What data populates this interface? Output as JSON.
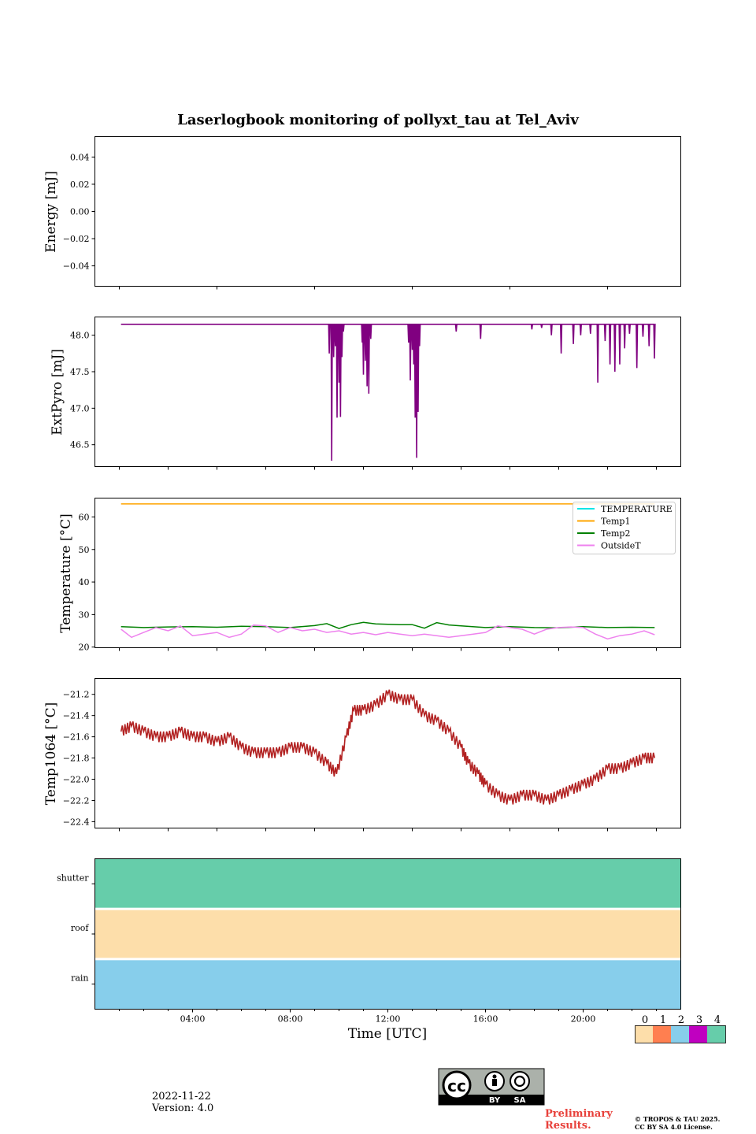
{
  "title": "Laserlogbook monitoring of pollyxt_tau at Tel_Aviv",
  "footer": {
    "date": "2022-11-22",
    "version": "Version: 4.0",
    "preliminary_line1": "Preliminary",
    "preliminary_line2": "Results.",
    "copyright_line1": "© TROPOS & TAU 2025.",
    "copyright_line2": "CC BY SA 4.0 License.",
    "license_badge": {
      "cc": "cc",
      "by": "BY",
      "sa": "SA"
    }
  },
  "chart_data": [
    {
      "type": "line",
      "id": "energy",
      "ylabel": "Energy [mJ]",
      "ylim": [
        -0.055,
        0.055
      ],
      "yticks": [
        "0.04",
        "0.02",
        "0.00",
        "−0.02",
        "−0.04"
      ],
      "ytick_values": [
        0.04,
        0.02,
        0.0,
        -0.02,
        -0.04
      ],
      "xlim": [
        0,
        24
      ],
      "series": []
    },
    {
      "type": "line",
      "id": "extpyro",
      "ylabel": "ExtPyro [mJ]",
      "ylim": [
        46.2,
        48.25
      ],
      "yticks": [
        "48.0",
        "47.5",
        "47.0",
        "46.5"
      ],
      "ytick_values": [
        48.0,
        47.5,
        47.0,
        46.5
      ],
      "xlim": [
        0,
        24
      ],
      "color": "#800080",
      "baseline": 48.15,
      "x_range": [
        1.07,
        22.93
      ],
      "dips": [
        [
          9.6,
          47.75
        ],
        [
          9.7,
          46.28
        ],
        [
          9.78,
          47.7
        ],
        [
          9.85,
          47.85
        ],
        [
          9.92,
          46.87
        ],
        [
          10.0,
          47.35
        ],
        [
          10.06,
          46.88
        ],
        [
          10.12,
          47.7
        ],
        [
          10.18,
          48.05
        ],
        [
          10.95,
          47.9
        ],
        [
          11.0,
          47.46
        ],
        [
          11.08,
          47.65
        ],
        [
          11.15,
          47.3
        ],
        [
          11.22,
          47.2
        ],
        [
          11.3,
          47.95
        ],
        [
          12.85,
          47.9
        ],
        [
          12.92,
          47.38
        ],
        [
          13.0,
          47.8
        ],
        [
          13.06,
          47.6
        ],
        [
          13.12,
          46.87
        ],
        [
          13.18,
          46.32
        ],
        [
          13.24,
          46.95
        ],
        [
          13.3,
          47.85
        ],
        [
          14.8,
          48.05
        ],
        [
          15.8,
          47.95
        ],
        [
          17.9,
          48.08
        ],
        [
          18.3,
          48.1
        ],
        [
          18.7,
          48.0
        ],
        [
          19.1,
          47.75
        ],
        [
          19.6,
          47.88
        ],
        [
          19.9,
          48.0
        ],
        [
          20.3,
          48.02
        ],
        [
          20.6,
          47.35
        ],
        [
          20.9,
          47.92
        ],
        [
          21.1,
          47.6
        ],
        [
          21.3,
          47.5
        ],
        [
          21.5,
          47.6
        ],
        [
          21.7,
          47.82
        ],
        [
          21.9,
          48.02
        ],
        [
          22.2,
          47.55
        ],
        [
          22.45,
          47.98
        ],
        [
          22.7,
          47.85
        ],
        [
          22.92,
          47.68
        ]
      ]
    },
    {
      "type": "line",
      "id": "temperature",
      "ylabel": "Temperature [°C]",
      "ylim": [
        19.8,
        65.8
      ],
      "yticks": [
        "60",
        "50",
        "40",
        "30",
        "20"
      ],
      "ytick_values": [
        60,
        50,
        40,
        30,
        20
      ],
      "xlim": [
        0,
        24
      ],
      "legend_position": "upper right",
      "series": [
        {
          "name": "TEMPERATURE",
          "color": "#00e5e5",
          "values": []
        },
        {
          "name": "Temp1",
          "color": "#ffa500",
          "x": [
            1.07,
            22.93
          ],
          "values": [
            64.0,
            64.0
          ]
        },
        {
          "name": "Temp2",
          "color": "#008000",
          "x": [
            1.07,
            2,
            3,
            4,
            5,
            6,
            7,
            8,
            9,
            9.5,
            10,
            10.5,
            11,
            11.5,
            12,
            12.5,
            13,
            13.5,
            14,
            14.5,
            15,
            16,
            17,
            18,
            19,
            20,
            21,
            22,
            22.93
          ],
          "values": [
            26.3,
            26.0,
            26.2,
            26.3,
            26.1,
            26.4,
            26.3,
            26.0,
            26.6,
            27.2,
            25.7,
            26.9,
            27.6,
            27.1,
            27.0,
            26.9,
            26.9,
            25.8,
            27.5,
            26.8,
            26.5,
            26.0,
            26.3,
            26.0,
            25.9,
            26.3,
            26.0,
            26.1,
            26.0
          ]
        },
        {
          "name": "OutsideT",
          "color": "#ee82ee",
          "x": [
            1.07,
            1.5,
            2,
            2.5,
            3,
            3.5,
            4,
            4.5,
            5,
            5.5,
            6,
            6.5,
            7,
            7.5,
            8,
            8.5,
            9,
            9.5,
            10,
            10.5,
            11,
            11.5,
            12,
            12.5,
            13,
            13.5,
            14,
            14.5,
            15,
            15.5,
            16,
            16.5,
            17,
            17.5,
            18,
            18.5,
            19,
            19.5,
            20,
            20.5,
            21,
            21.5,
            22,
            22.5,
            22.93
          ],
          "values": [
            25.5,
            23.0,
            24.5,
            26.0,
            25.0,
            26.5,
            23.5,
            24.0,
            24.5,
            23.0,
            24.0,
            26.8,
            26.5,
            24.5,
            26.0,
            25.0,
            25.5,
            24.5,
            25.0,
            24.0,
            24.5,
            23.8,
            24.5,
            24.0,
            23.5,
            24.0,
            23.5,
            23.0,
            23.5,
            24.0,
            24.5,
            26.5,
            26.0,
            25.5,
            24.0,
            25.5,
            26.0,
            26.2,
            26.0,
            24.0,
            22.5,
            23.5,
            24.0,
            25.0,
            23.8
          ]
        }
      ]
    },
    {
      "type": "line",
      "id": "temp1064",
      "ylabel": "Temp1064 [°C]",
      "ylim": [
        -22.46,
        -21.05
      ],
      "yticks": [
        "−21.2",
        "−21.4",
        "−21.6",
        "−21.8",
        "−22.0",
        "−22.2",
        "−22.4"
      ],
      "ytick_values": [
        -21.2,
        -21.4,
        -21.6,
        -21.8,
        -22.0,
        -22.2,
        -22.4
      ],
      "xlim": [
        0,
        24
      ],
      "color": "#b22222",
      "x": [
        1.07,
        1.5,
        2,
        2.5,
        3,
        3.5,
        4,
        4.5,
        5,
        5.5,
        6,
        6.5,
        7,
        7.5,
        8,
        8.5,
        9,
        9.5,
        9.9,
        10.3,
        10.6,
        11,
        11.5,
        12,
        12.5,
        13,
        13.5,
        14,
        14.5,
        15,
        15.3,
        15.7,
        16,
        16.5,
        17,
        17.5,
        18,
        18.5,
        19,
        19.5,
        20,
        20.5,
        21,
        21.5,
        22,
        22.5,
        22.93
      ],
      "values": [
        -21.55,
        -21.5,
        -21.55,
        -21.6,
        -21.6,
        -21.55,
        -21.6,
        -21.6,
        -21.65,
        -21.6,
        -21.7,
        -21.75,
        -21.75,
        -21.75,
        -21.7,
        -21.7,
        -21.75,
        -21.85,
        -21.95,
        -21.6,
        -21.35,
        -21.35,
        -21.3,
        -21.2,
        -21.25,
        -21.25,
        -21.4,
        -21.45,
        -21.55,
        -21.7,
        -21.85,
        -21.95,
        -22.05,
        -22.15,
        -22.2,
        -22.15,
        -22.15,
        -22.2,
        -22.15,
        -22.1,
        -22.05,
        -22.0,
        -21.9,
        -21.9,
        -21.85,
        -21.8,
        -21.8
      ]
    },
    {
      "type": "heatmap",
      "id": "status",
      "rows": [
        "shutter",
        "roof",
        "rain"
      ],
      "row_colors": [
        "#66cdaa",
        "#fddeaa",
        "#87ceeb"
      ],
      "xlabel": "Time [UTC]",
      "xlim": [
        0,
        24
      ],
      "xticks": [
        "04:00",
        "08:00",
        "12:00",
        "16:00",
        "20:00"
      ],
      "xtick_values": [
        4,
        8,
        12,
        16,
        20
      ]
    }
  ],
  "colorbar": {
    "labels": [
      "0",
      "1",
      "2",
      "3",
      "4"
    ],
    "colors": [
      "#fddeaa",
      "#ff7f50",
      "#87ceeb",
      "#c000c0",
      "#66cdaa"
    ]
  }
}
